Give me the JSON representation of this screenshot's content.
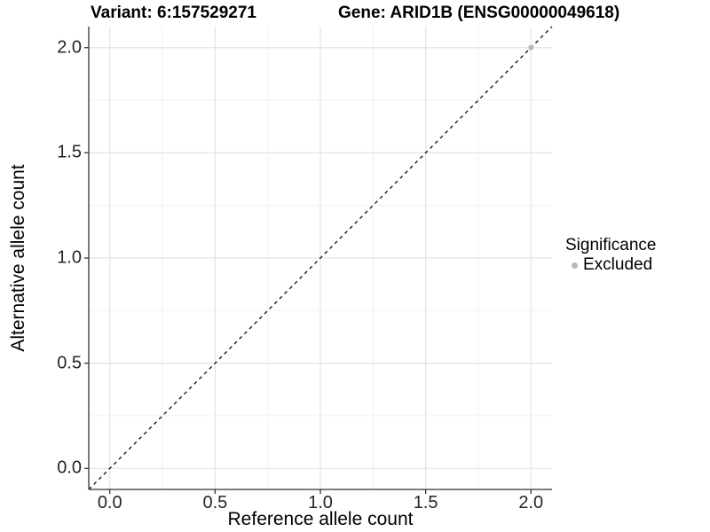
{
  "titles": {
    "variant": "Variant: 6:157529271",
    "gene": "Gene: ARID1B (ENSG00000049618)"
  },
  "chart_data": {
    "type": "scatter",
    "title": "Variant: 6:157529271    Gene: ARID1B (ENSG00000049618)",
    "xlabel": "Reference allele count",
    "ylabel": "Alternative allele count",
    "xlim": [
      -0.1,
      2.1
    ],
    "ylim": [
      -0.1,
      2.1
    ],
    "x_tick_values": [
      0.0,
      0.5,
      1.0,
      1.5,
      2.0
    ],
    "x_tick_labels": [
      "0.0",
      "0.5",
      "1.0",
      "1.5",
      "2.0"
    ],
    "y_tick_values": [
      0.0,
      0.5,
      1.0,
      1.5,
      2.0
    ],
    "y_tick_labels": [
      "0.0",
      "0.5",
      "1.0",
      "1.5",
      "2.0"
    ],
    "x_minor_ticks": [
      0.25,
      0.75,
      1.25,
      1.75
    ],
    "y_minor_ticks": [
      0.25,
      0.75,
      1.25,
      1.75
    ],
    "grid": {
      "major": true,
      "minor": true,
      "major_color": "#e4e4e4",
      "minor_color": "#f1f1f1"
    },
    "axis": {
      "line_color": "#333333",
      "tick_color": "#333333",
      "tick_length": 5,
      "tick_label_color": "#262626"
    },
    "identity_line": {
      "from": [
        -0.1,
        -0.1
      ],
      "to": [
        2.1,
        2.1
      ],
      "style": "dashed",
      "dash": "4 4",
      "color": "#1a1a1a",
      "width": 1.4
    },
    "series": [
      {
        "name": "Excluded",
        "color": "#b8b8b8",
        "marker": "circle",
        "marker_radius": 3,
        "points": [
          [
            2.0,
            2.0
          ]
        ]
      }
    ],
    "legend": {
      "title": "Significance",
      "position": "right",
      "items": [
        {
          "label": "Excluded",
          "color": "#b8b8b8",
          "marker": "circle"
        }
      ]
    }
  }
}
